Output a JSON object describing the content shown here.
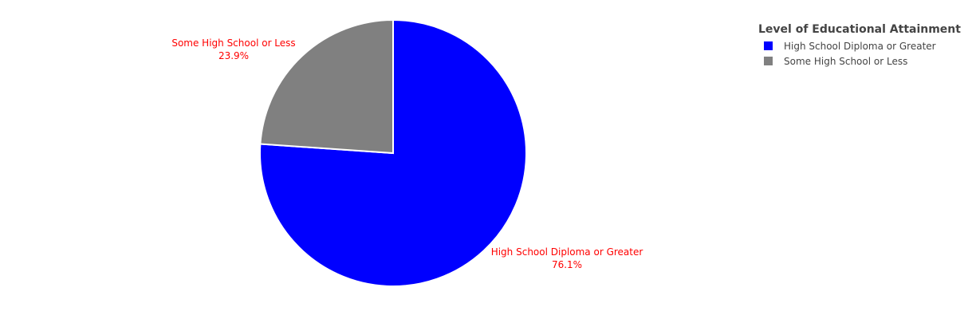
{
  "chart_data": {
    "type": "pie",
    "title": "",
    "legend_title": "Level of Educational Attainment",
    "legend_position": "top-right",
    "label_color": "#ff0000",
    "direction": "clockwise",
    "start": "12 o'clock",
    "slices": [
      {
        "label": "High School Diploma or Greater",
        "value": 76.1,
        "percent_text": "76.1%",
        "color": "#0000ff"
      },
      {
        "label": "Some High School or Less",
        "value": 23.9,
        "percent_text": "23.9%",
        "color": "#808080"
      }
    ]
  }
}
